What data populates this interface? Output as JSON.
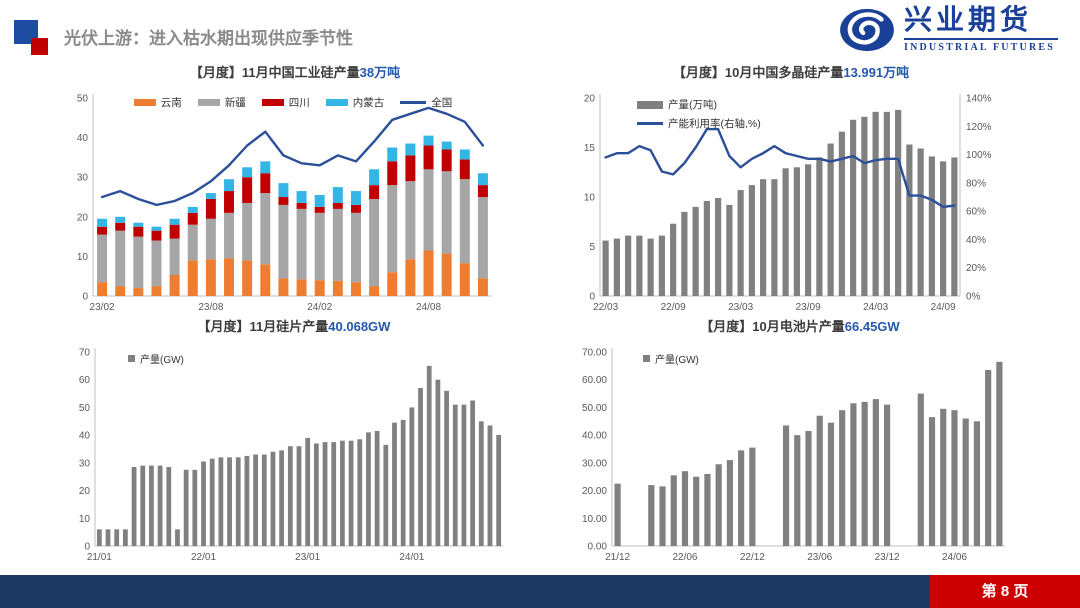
{
  "header": {
    "title": "光伏上游：进入枯水期出现供应季节性"
  },
  "logo": {
    "name_cn": "兴业期货",
    "name_en": "INDUSTRIAL FUTURES"
  },
  "footer": {
    "page_label": "第 8 页"
  },
  "colors": {
    "accent_blue": "#2458AC",
    "navy_line": "#2B4F98",
    "orange": "#ED7D31",
    "light_gray": "#A6A6A6",
    "dark_red": "#C00000",
    "cyan": "#33B5E5",
    "bar_gray": "#808080",
    "footer_blue": "#1E3864",
    "footer_red": "#CC0000",
    "logo_blue": "#1B4098",
    "axis_line": "#BFBFBF",
    "tick_text": "#595959"
  },
  "chart_data": [
    {
      "id": "industrial-silicon",
      "type": "bar",
      "stacked": true,
      "title_prefix": "【月度】11月中国工业硅产量",
      "title_highlight": "38万吨",
      "legend_style": "row",
      "categories": [
        "23/02",
        "23/03",
        "23/04",
        "23/05",
        "23/06",
        "23/07",
        "23/08",
        "23/09",
        "23/10",
        "23/11",
        "23/12",
        "24/01",
        "24/02",
        "24/03",
        "24/04",
        "24/05",
        "24/06",
        "24/07",
        "24/08",
        "24/09",
        "24/10",
        "24/11"
      ],
      "x_tick_every": 6,
      "ylim": [
        0,
        50
      ],
      "y_step": 10,
      "series": [
        {
          "name": "云南",
          "type": "bar",
          "color": "#ED7D31",
          "values": [
            3.5,
            2.5,
            2,
            2.5,
            5.3,
            9,
            9.3,
            9.5,
            9,
            8,
            4.5,
            4.2,
            4,
            3.8,
            3.5,
            2.5,
            6,
            9.3,
            11.5,
            10.7,
            8.3,
            4.5
          ]
        },
        {
          "name": "新疆",
          "type": "bar",
          "color": "#A6A6A6",
          "values": [
            12,
            14,
            13,
            11.5,
            9.2,
            9,
            10.2,
            11.5,
            14.5,
            18,
            18.5,
            17.8,
            17,
            18.2,
            17.5,
            22,
            22,
            19.7,
            20.5,
            20.8,
            21.2,
            20.5
          ]
        },
        {
          "name": "四川",
          "type": "bar",
          "color": "#C00000",
          "values": [
            2,
            2,
            2.5,
            2.5,
            3.5,
            3,
            5,
            5.5,
            6.5,
            5,
            2,
            1.5,
            1.5,
            1.5,
            2,
            3.5,
            6,
            6.5,
            6,
            5.5,
            5,
            3
          ]
        },
        {
          "name": "内蒙古",
          "type": "bar",
          "color": "#33B5E5",
          "values": [
            2,
            1.5,
            1,
            1,
            1.5,
            1.5,
            1.5,
            3,
            2.5,
            3,
            3.5,
            3,
            3,
            4,
            3.5,
            4,
            3.5,
            3,
            2.5,
            2,
            2.5,
            3
          ]
        },
        {
          "name": "全国",
          "type": "line",
          "color": "#2B4F98",
          "values": [
            25,
            26.5,
            24.5,
            23,
            24,
            26,
            29,
            33,
            38,
            41.5,
            35.5,
            33.5,
            33,
            35.5,
            34,
            39,
            44.5,
            46,
            47.5,
            46,
            44,
            38
          ]
        }
      ]
    },
    {
      "id": "polysilicon",
      "type": "bar",
      "stacked": false,
      "title_prefix": "【月度】10月中国多晶硅产量",
      "title_highlight": "13.991万吨",
      "legend_style": "stack",
      "categories": [
        "22/03",
        "22/04",
        "22/05",
        "22/06",
        "22/07",
        "22/08",
        "22/09",
        "22/10",
        "22/11",
        "22/12",
        "23/01",
        "23/02",
        "23/03",
        "23/04",
        "23/05",
        "23/06",
        "23/07",
        "23/08",
        "23/09",
        "23/10",
        "23/11",
        "23/12",
        "24/01",
        "24/02",
        "24/03",
        "24/04",
        "24/05",
        "24/06",
        "24/07",
        "24/08",
        "24/09",
        "24/10"
      ],
      "x_tick_every": 6,
      "ylim": [
        0,
        20
      ],
      "y_step": 5,
      "y2lim": [
        0,
        140
      ],
      "y2_step": 20,
      "y2_format": "percent",
      "series": [
        {
          "name": "产量(万吨)",
          "type": "bar",
          "color": "#808080",
          "values": [
            5.6,
            5.8,
            6.1,
            6.1,
            5.8,
            6.1,
            7.3,
            8.5,
            9.0,
            9.6,
            9.9,
            9.2,
            10.7,
            11.2,
            11.8,
            11.8,
            12.9,
            13.0,
            13.3,
            14.0,
            15.4,
            16.6,
            17.8,
            18.1,
            18.6,
            18.6,
            18.8,
            15.3,
            14.9,
            14.1,
            13.6,
            13.991
          ]
        },
        {
          "name": "产能利用率(右轴,%)",
          "type": "line",
          "axis": "right",
          "color": "#2B4F98",
          "values": [
            98,
            101,
            101,
            106,
            103,
            88,
            86,
            94,
            105,
            118,
            118,
            99,
            91,
            97,
            101,
            106,
            101,
            99,
            97,
            97,
            95,
            97,
            99,
            94,
            96,
            97,
            97,
            71,
            71,
            68,
            63,
            64
          ]
        }
      ]
    },
    {
      "id": "silicon-wafer",
      "type": "bar",
      "stacked": false,
      "title_prefix": "【月度】11月硅片产量",
      "title_highlight": "40.068GW",
      "legend_style": "mini",
      "categories": [
        "21/01",
        "21/02",
        "21/03",
        "21/04",
        "21/05",
        "21/06",
        "21/07",
        "21/08",
        "21/09",
        "21/10",
        "21/11",
        "21/12",
        "22/01",
        "22/02",
        "22/03",
        "22/04",
        "22/05",
        "22/06",
        "22/07",
        "22/08",
        "22/09",
        "22/10",
        "22/11",
        "22/12",
        "23/01",
        "23/02",
        "23/03",
        "23/04",
        "23/05",
        "23/06",
        "23/07",
        "23/08",
        "23/09",
        "23/10",
        "23/11",
        "23/12",
        "24/01",
        "24/02",
        "24/03",
        "24/04",
        "24/05",
        "24/06",
        "24/07",
        "24/08",
        "24/09",
        "24/10",
        "24/11"
      ],
      "x_tick_every": 12,
      "ylim": [
        0,
        70
      ],
      "y_step": 10,
      "series": [
        {
          "name": "产量(GW)",
          "type": "bar",
          "color": "#808080",
          "values": [
            6,
            6,
            6,
            6,
            28.5,
            29,
            29,
            29,
            28.5,
            6,
            27.5,
            27.5,
            30.5,
            31.5,
            32,
            32,
            32,
            32.5,
            33,
            33,
            34,
            34.5,
            36,
            36,
            39,
            37,
            37.5,
            37.5,
            38,
            38,
            38.5,
            41,
            41.5,
            36.5,
            44.5,
            45.5,
            50,
            57,
            65,
            60,
            56,
            51,
            51,
            52.5,
            45,
            43.5,
            40.068
          ]
        }
      ]
    },
    {
      "id": "solar-cell",
      "type": "bar",
      "stacked": false,
      "title_prefix": "【月度】10月电池片产量",
      "title_highlight": "66.45GW",
      "legend_style": "mini",
      "categories": [
        "21/12",
        "22/01",
        "22/02",
        "22/03",
        "22/04",
        "22/05",
        "22/06",
        "22/07",
        "22/08",
        "22/09",
        "22/10",
        "22/11",
        "22/12",
        "23/01",
        "23/02",
        "23/03",
        "23/04",
        "23/05",
        "23/06",
        "23/07",
        "23/08",
        "23/09",
        "23/10",
        "23/11",
        "23/12",
        "24/01",
        "24/02",
        "24/03",
        "24/04",
        "24/05",
        "24/06",
        "24/07",
        "24/08",
        "24/09",
        "24/10"
      ],
      "x_tick_every": 6,
      "ylim": [
        0,
        70
      ],
      "y_step": 10,
      "y_format": "2dp",
      "series": [
        {
          "name": "产量(GW)",
          "type": "bar",
          "color": "#808080",
          "values": [
            22.5,
            null,
            null,
            22,
            21.5,
            25.5,
            27,
            25,
            26,
            29.5,
            31,
            34.5,
            35.5,
            null,
            null,
            43.5,
            40,
            41.5,
            47,
            44.5,
            49,
            51.5,
            52,
            53,
            51,
            null,
            null,
            55,
            46.5,
            49.5,
            49,
            46,
            45,
            63.5,
            66.45
          ]
        }
      ]
    }
  ]
}
